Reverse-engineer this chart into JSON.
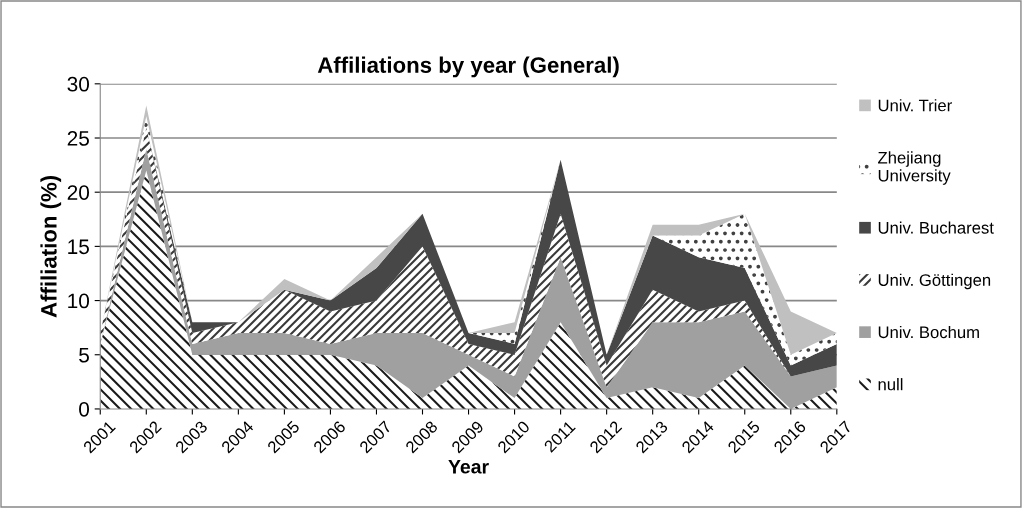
{
  "chart_data": {
    "type": "area",
    "stacked": true,
    "title": "Affiliations by year (General)",
    "xlabel": "Year",
    "ylabel": "Affiliation (%)",
    "categories": [
      "2001",
      "2002",
      "2003",
      "2004",
      "2005",
      "2006",
      "2007",
      "2008",
      "2009",
      "2010",
      "2011",
      "2012",
      "2013",
      "2014",
      "2015",
      "2016",
      "2017"
    ],
    "series": [
      {
        "name": "null",
        "color": "#1a1a1a",
        "values": [
          6,
          22,
          5,
          5,
          5,
          5,
          4,
          1,
          4,
          1,
          8,
          1,
          2,
          1,
          4,
          0,
          2
        ]
      },
      {
        "name": "Univ. Bochum",
        "color": "#a0a0a0",
        "values": [
          0,
          2,
          1,
          2,
          2,
          1,
          3,
          6,
          1,
          2,
          6,
          1,
          6,
          7,
          5,
          3,
          2
        ]
      },
      {
        "name": "Univ. Göttingen",
        "color": "#3a3a3a",
        "values": [
          1,
          2,
          1,
          1,
          4,
          3,
          3,
          8,
          1,
          2,
          4,
          2,
          3,
          1,
          1,
          0,
          0
        ]
      },
      {
        "name": "Univ. Bucharest",
        "color": "#474747",
        "values": [
          0,
          0,
          1,
          0,
          0,
          1,
          3,
          3,
          1,
          1,
          5,
          1,
          5,
          5,
          3,
          1,
          2
        ]
      },
      {
        "name": "Zhejiang\nUniversity",
        "color": "#404040",
        "values": [
          0,
          1,
          0,
          0,
          0,
          0,
          0,
          0,
          0,
          1,
          0,
          0,
          0,
          2,
          5,
          1,
          1
        ]
      },
      {
        "name": "Univ. Trier",
        "color": "#c0c0c0",
        "values": [
          0,
          1,
          0,
          0,
          1,
          0,
          1,
          0,
          0,
          1,
          0,
          0,
          1,
          1,
          0,
          4,
          0
        ]
      }
    ],
    "ylim": [
      0,
      30
    ],
    "yticks": [
      0,
      5,
      10,
      15,
      20,
      25,
      30
    ],
    "grid": "y",
    "legend": "right"
  }
}
